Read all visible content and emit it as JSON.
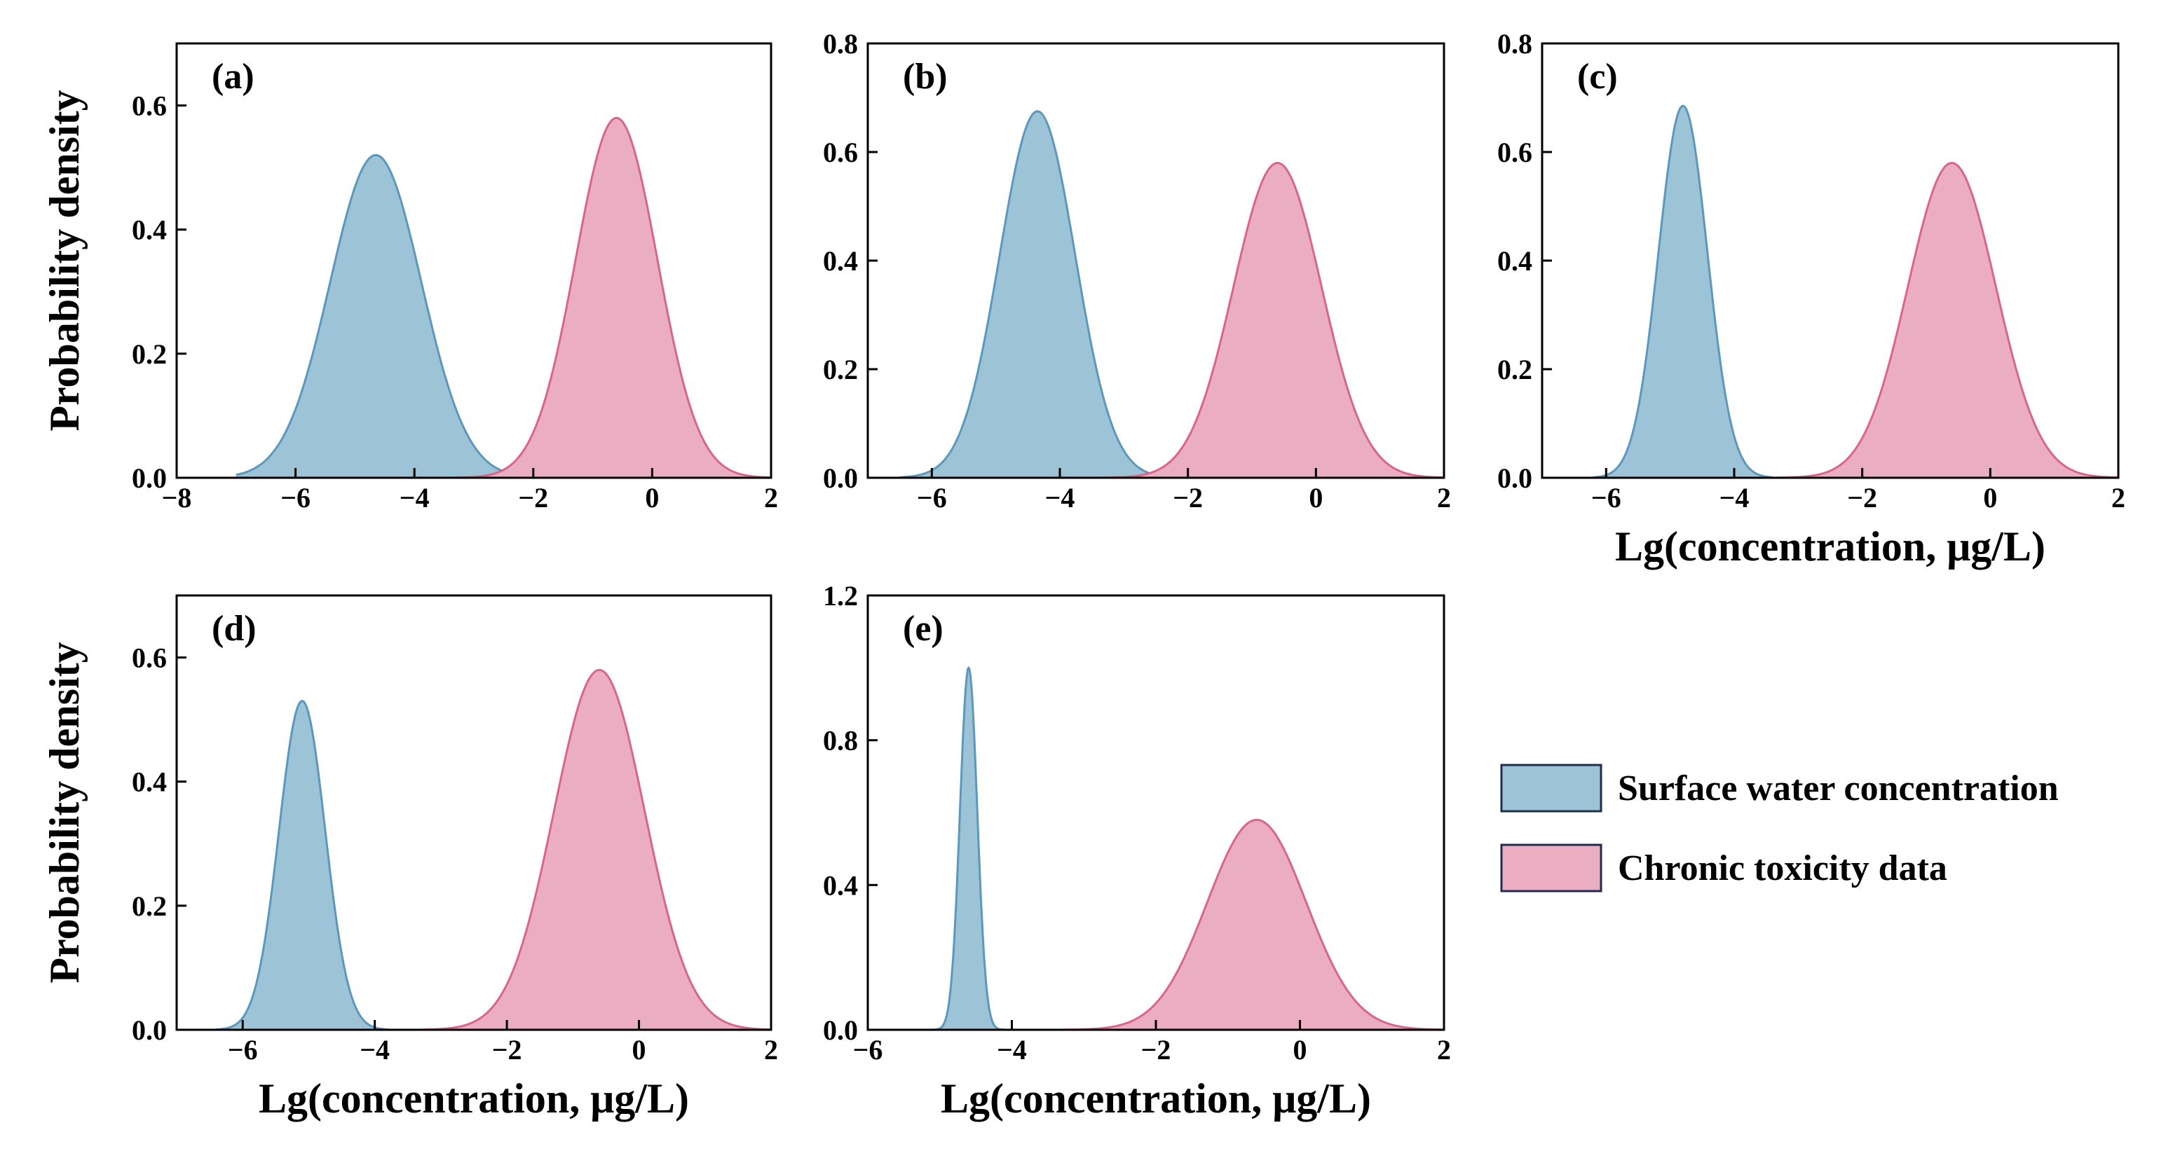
{
  "figure": {
    "ylabel": "Probability  density",
    "xlabel": "Lg(concentration, μg/L)",
    "colors": {
      "surface_fill": "#9cc3d6",
      "surface_line": "#5b98bb",
      "chronic_fill": "#ebadc1",
      "chronic_line": "#d9658f"
    },
    "legend": {
      "items": [
        {
          "label": "Surface water concentration",
          "series": "surface"
        },
        {
          "label": "Chronic toxicity data",
          "series": "chronic"
        }
      ]
    }
  },
  "chart_data": [
    {
      "type": "area",
      "panel": "(a)",
      "xlim": [
        -8,
        2
      ],
      "ylim": [
        0,
        0.7
      ],
      "xticks": [
        -8,
        -6,
        -4,
        -2,
        0,
        2
      ],
      "xtick_labels": [
        "−8",
        "−6",
        "−4",
        "−2",
        "0",
        "2"
      ],
      "yticks": [
        0,
        0.2,
        0.4,
        0.6
      ],
      "ytick_labels": [
        "0.0",
        "0.2",
        "0.4",
        "0.6"
      ],
      "xlabel": "",
      "ylabel": "Probability  density",
      "series": [
        {
          "name": "Surface water concentration",
          "key": "surface",
          "peak_x": -4.65,
          "peak_y": 0.52,
          "sd": 0.767,
          "x_range": [
            -7.0,
            -2.5
          ]
        },
        {
          "name": "Chronic toxicity data",
          "key": "chronic",
          "peak_x": -0.6,
          "peak_y": 0.58,
          "sd": 0.688,
          "x_range": [
            -3.3,
            2.0
          ]
        }
      ]
    },
    {
      "type": "area",
      "panel": "(b)",
      "xlim": [
        -7,
        2
      ],
      "ylim": [
        0,
        0.8
      ],
      "xticks": [
        -6,
        -4,
        -2,
        0,
        2
      ],
      "xtick_labels": [
        "−6",
        "−4",
        "−2",
        "0",
        "2"
      ],
      "yticks": [
        0,
        0.2,
        0.4,
        0.6,
        0.8
      ],
      "ytick_labels": [
        "0.0",
        "0.2",
        "0.4",
        "0.6",
        "0.8"
      ],
      "xlabel": "",
      "ylabel": "",
      "series": [
        {
          "name": "Surface water concentration",
          "key": "surface",
          "peak_x": -4.35,
          "peak_y": 0.675,
          "sd": 0.591,
          "x_range": [
            -6.5,
            -2.3
          ]
        },
        {
          "name": "Chronic toxicity data",
          "key": "chronic",
          "peak_x": -0.6,
          "peak_y": 0.58,
          "sd": 0.688,
          "x_range": [
            -3.3,
            2.0
          ]
        }
      ]
    },
    {
      "type": "area",
      "panel": "(c)",
      "xlim": [
        -7,
        2
      ],
      "ylim": [
        0,
        0.8
      ],
      "xticks": [
        -6,
        -4,
        -2,
        0,
        2
      ],
      "xtick_labels": [
        "−6",
        "−4",
        "−2",
        "0",
        "2"
      ],
      "yticks": [
        0,
        0.2,
        0.4,
        0.6,
        0.8
      ],
      "ytick_labels": [
        "0.0",
        "0.2",
        "0.4",
        "0.6",
        "0.8"
      ],
      "xlabel": "Lg(concentration, μg/L)",
      "ylabel": "",
      "series": [
        {
          "name": "Surface water concentration",
          "key": "surface",
          "peak_x": -4.8,
          "peak_y": 0.685,
          "sd": 0.382,
          "x_range": [
            -6.2,
            -3.4
          ]
        },
        {
          "name": "Chronic toxicity data",
          "key": "chronic",
          "peak_x": -0.6,
          "peak_y": 0.58,
          "sd": 0.688,
          "x_range": [
            -3.3,
            2.0
          ]
        }
      ]
    },
    {
      "type": "area",
      "panel": "(d)",
      "xlim": [
        -7,
        2
      ],
      "ylim": [
        0,
        0.7
      ],
      "xticks": [
        -6,
        -4,
        -2,
        0,
        2
      ],
      "xtick_labels": [
        "−6",
        "−4",
        "−2",
        "0",
        "2"
      ],
      "yticks": [
        0,
        0.2,
        0.4,
        0.6
      ],
      "ytick_labels": [
        "0.0",
        "0.2",
        "0.4",
        "0.6"
      ],
      "xlabel": "Lg(concentration, μg/L)",
      "ylabel": "Probability  density",
      "series": [
        {
          "name": "Surface water concentration",
          "key": "surface",
          "peak_x": -5.1,
          "peak_y": 0.53,
          "sd": 0.35,
          "x_range": [
            -6.4,
            -3.8
          ]
        },
        {
          "name": "Chronic toxicity data",
          "key": "chronic",
          "peak_x": -0.6,
          "peak_y": 0.58,
          "sd": 0.688,
          "x_range": [
            -3.3,
            2.0
          ]
        }
      ]
    },
    {
      "type": "area",
      "panel": "(e)",
      "xlim": [
        -6,
        2
      ],
      "ylim": [
        0,
        1.2
      ],
      "xticks": [
        -6,
        -4,
        -2,
        0,
        2
      ],
      "xtick_labels": [
        "−6",
        "−4",
        "−2",
        "0",
        "2"
      ],
      "yticks": [
        0,
        0.4,
        0.8,
        1.2
      ],
      "ytick_labels": [
        "0.0",
        "0.4",
        "0.8",
        "1.2"
      ],
      "xlabel": "Lg(concentration, μg/L)",
      "ylabel": "",
      "series": [
        {
          "name": "Surface water concentration",
          "key": "surface",
          "peak_x": -4.6,
          "peak_y": 1.0,
          "sd": 0.12,
          "x_range": [
            -5.3,
            -3.9
          ]
        },
        {
          "name": "Chronic toxicity data",
          "key": "chronic",
          "peak_x": -0.6,
          "peak_y": 0.58,
          "sd": 0.688,
          "x_range": [
            -3.3,
            2.0
          ]
        }
      ]
    }
  ]
}
